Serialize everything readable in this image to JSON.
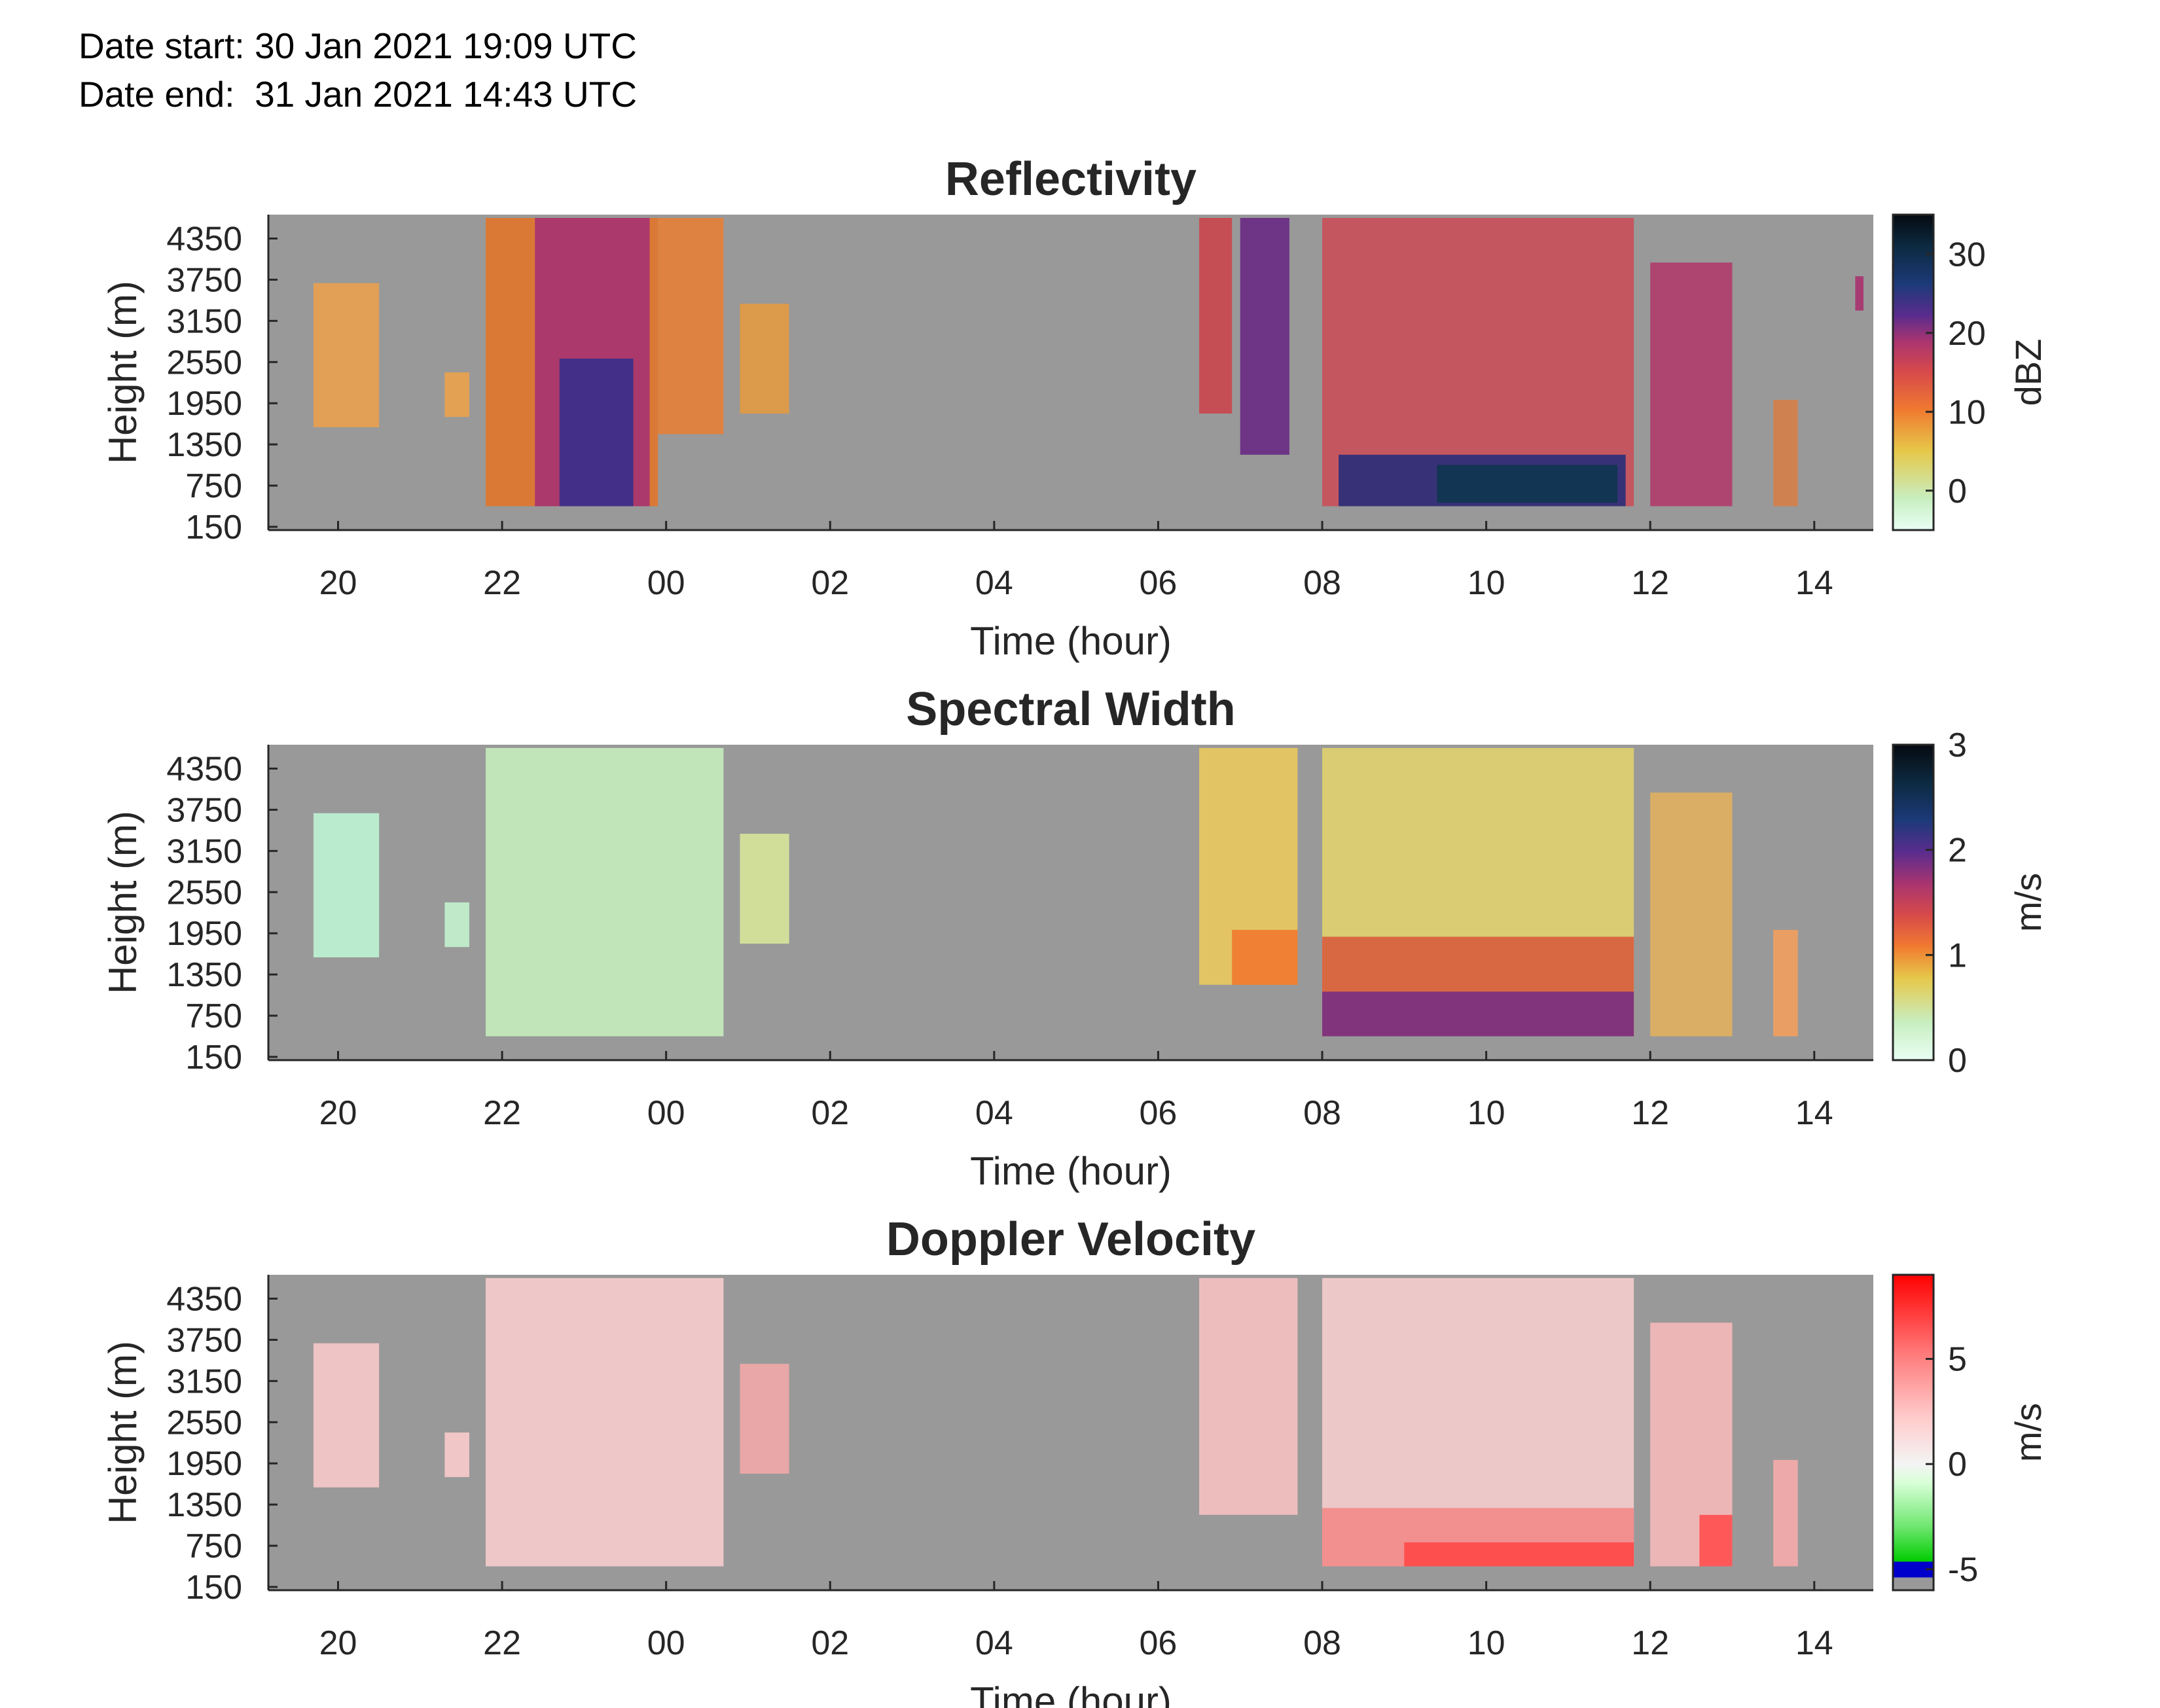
{
  "header": {
    "date_start": "Date start: 30 Jan 2021 19:09 UTC",
    "date_end": "Date end:  31 Jan 2021 14:43 UTC"
  },
  "colors": {
    "background_nodata": "#999999",
    "reflectivity_cmap": [
      "#e8fff4",
      "#c8eec0",
      "#e6c84a",
      "#f07a30",
      "#d84a4a",
      "#a83470",
      "#5a2c8e",
      "#1c3a78",
      "#0c2a40",
      "#060a10"
    ],
    "width_cmap": [
      "#e8fff4",
      "#c8eec0",
      "#e6c84a",
      "#f07a30",
      "#d84a4a",
      "#a83470",
      "#5a2c8e",
      "#1c3a78",
      "#0c2a40",
      "#060a10"
    ],
    "velocity_cmap": [
      "#999999",
      "#0000cc",
      "#00cc00",
      "#b8ffb8",
      "#f4f4f4",
      "#ffc8c8",
      "#ff8a8a",
      "#ff4040",
      "#ff0000"
    ]
  },
  "chart_data": [
    {
      "type": "heatmap",
      "title": "Reflectivity",
      "xlabel": "Time (hour)",
      "ylabel": "Height (m)",
      "x_ticks": [
        "20",
        "22",
        "00",
        "02",
        "04",
        "06",
        "08",
        "10",
        "12",
        "14"
      ],
      "y_ticks": [
        "150",
        "750",
        "1350",
        "1950",
        "2550",
        "3150",
        "3750",
        "4350"
      ],
      "xlim_hours_since_midnight_30jan": [
        19.15,
        38.72
      ],
      "ylim": [
        150,
        4650
      ],
      "colorbar": {
        "label": "dBZ",
        "ticks": [
          "0",
          "10",
          "20",
          "30"
        ],
        "range": [
          -5,
          35
        ]
      },
      "grid": false
    },
    {
      "type": "heatmap",
      "title": "Spectral Width",
      "xlabel": "Time (hour)",
      "ylabel": "Height (m)",
      "x_ticks": [
        "20",
        "22",
        "00",
        "02",
        "04",
        "06",
        "08",
        "10",
        "12",
        "14"
      ],
      "y_ticks": [
        "150",
        "750",
        "1350",
        "1950",
        "2550",
        "3150",
        "3750",
        "4350"
      ],
      "colorbar": {
        "label": "m/s",
        "ticks": [
          "0",
          "1",
          "2",
          "3"
        ],
        "range": [
          0,
          3
        ]
      },
      "grid": false
    },
    {
      "type": "heatmap",
      "title": "Doppler Velocity",
      "xlabel": "Time (hour)",
      "ylabel": "Height (m)",
      "x_ticks": [
        "20",
        "22",
        "00",
        "02",
        "04",
        "06",
        "08",
        "10",
        "12",
        "14"
      ],
      "y_ticks": [
        "150",
        "750",
        "1350",
        "1950",
        "2550",
        "3150",
        "3750",
        "4350"
      ],
      "colorbar": {
        "label": "m/s",
        "ticks": [
          "-5",
          "0",
          "5"
        ],
        "range": [
          -6,
          9
        ]
      },
      "grid": false
    }
  ]
}
